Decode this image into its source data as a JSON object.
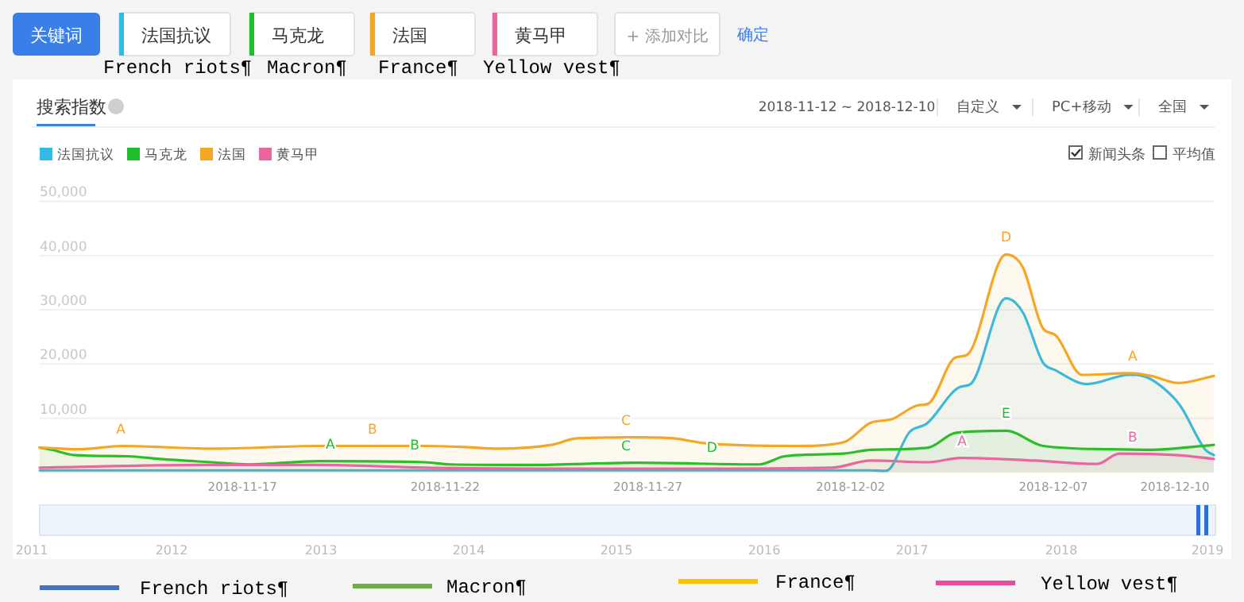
{
  "chart_data": {
    "type": "area",
    "title": "搜索指数",
    "legend": "top left",
    "grid": "y",
    "marker": "none",
    "xlim": [
      "2018-11-12T00:00",
      "2018-12-10T23:00"
    ],
    "xticks": [
      "2018-11-17",
      "2018-11-22",
      "2018-11-27",
      "2018-12-02",
      "2018-12-07",
      "2018-12-10"
    ],
    "ylim": [
      0,
      50000
    ],
    "yticks": [
      {
        "value": 10000,
        "label": "10,000"
      },
      {
        "value": 20000,
        "label": "20,000"
      },
      {
        "value": 30000,
        "label": "30,000"
      },
      {
        "value": 40000,
        "label": "40,000"
      },
      {
        "value": 50000,
        "label": "50,000"
      }
    ],
    "series": [
      {
        "name": "法国抗议",
        "color": "#33bbe8",
        "x": [
          "2018-11-12T00:00",
          "2018-11-20T00:00",
          "2018-11-28T00:00",
          "2018-12-02T12:00",
          "2018-12-02T21:00",
          "2018-12-03T11:00",
          "2018-12-03T21:00",
          "2018-12-04T17:00",
          "2018-12-04T23:00",
          "2018-12-05T20:00",
          "2018-12-06T06:00",
          "2018-12-06T18:00",
          "2018-12-07T01:00",
          "2018-12-07T20:00",
          "2018-12-08T21:00",
          "2018-12-09T05:00",
          "2018-12-09T23:00",
          "2018-12-10T04:00",
          "2018-12-10T18:00",
          "2018-12-10T23:00"
        ],
        "values": [
          400,
          400,
          400,
          400,
          300,
          7500,
          9000,
          15800,
          16300,
          32100,
          29500,
          20200,
          18900,
          16300,
          18000,
          17800,
          13900,
          11900,
          4200,
          3200
        ]
      },
      {
        "name": "马克龙",
        "color": "#1fbf2a",
        "x": [
          "2018-11-12T00:00",
          "2018-11-12T07:00",
          "2018-11-12T21:00",
          "2018-11-14T04:00",
          "2018-11-14T23:00",
          "2018-11-16T06:00",
          "2018-11-17T04:00",
          "2018-11-18T21:00",
          "2018-11-21T12:00",
          "2018-11-22T03:00",
          "2018-11-24T02:00",
          "2018-11-26T17:00",
          "2018-11-29T18:00",
          "2018-11-30T09:00",
          "2018-12-01T20:00",
          "2018-12-02T12:00",
          "2018-12-03T22:00",
          "2018-12-04T14:00",
          "2018-12-05T20:00",
          "2018-12-06T18:00",
          "2018-12-08T09:00",
          "2018-12-09T10:00",
          "2018-12-10T23:00"
        ],
        "values": [
          4600,
          4200,
          3200,
          3000,
          2500,
          1900,
          1500,
          2100,
          1900,
          1500,
          1400,
          1800,
          1500,
          3000,
          3500,
          4200,
          4600,
          7300,
          7700,
          4900,
          4300,
          4200,
          5100
        ]
      },
      {
        "name": "法国",
        "color": "#f5a623",
        "x": [
          "2018-11-12T00:00",
          "2018-11-12T23:00",
          "2018-11-14T01:00",
          "2018-11-16T06:00",
          "2018-11-18T21:00",
          "2018-11-21T12:00",
          "2018-11-22T12:00",
          "2018-11-23T07:00",
          "2018-11-24T15:00",
          "2018-11-25T06:00",
          "2018-11-26T17:00",
          "2018-11-27T15:00",
          "2018-11-28T10:00",
          "2018-11-30T16:00",
          "2018-12-01T20:00",
          "2018-12-02T12:00",
          "2018-12-03T00:00",
          "2018-12-03T16:00",
          "2018-12-03T22:00",
          "2018-12-04T14:00",
          "2018-12-04T21:00",
          "2018-12-05T20:00",
          "2018-12-06T06:00",
          "2018-12-06T18:00",
          "2018-12-07T01:00",
          "2018-12-07T17:00",
          "2018-12-08T21:00",
          "2018-12-09T10:00",
          "2018-12-10T02:00",
          "2018-12-10T23:00"
        ],
        "values": [
          4600,
          4300,
          4900,
          4400,
          4900,
          4900,
          4700,
          4400,
          5100,
          6300,
          6500,
          6300,
          5400,
          4900,
          5600,
          9200,
          9800,
          12400,
          12700,
          21200,
          21700,
          40200,
          37800,
          26500,
          25400,
          18000,
          18300,
          17800,
          16500,
          17800
        ]
      },
      {
        "name": "黄马甲",
        "color": "#e8679e",
        "x": [
          "2018-11-12T00:00",
          "2018-11-16T06:00",
          "2018-11-18T21:00",
          "2018-11-21T12:00",
          "2018-11-26T17:00",
          "2018-12-01T13:00",
          "2018-12-02T12:00",
          "2018-12-03T22:00",
          "2018-12-04T17:00",
          "2018-12-06T13:00",
          "2018-12-08T02:00",
          "2018-12-08T15:00",
          "2018-12-10T02:00",
          "2018-12-10T23:00"
        ],
        "values": [
          900,
          1400,
          1400,
          900,
          700,
          900,
          2200,
          1900,
          2700,
          2200,
          1600,
          3500,
          3200,
          2500
        ]
      }
    ],
    "annotations": [
      "关键词",
      "+ 添加对比",
      "确定",
      "French riots¶",
      "Macron¶",
      "France¶",
      "Yellow vest¶",
      "2018-11-12 ~ 2018-12-10",
      "自定义",
      "PC+移动",
      "全国",
      "新闻头条",
      "平均值",
      "2011",
      "2012",
      "2013",
      "2014",
      "2015",
      "2016",
      "2017",
      "2018",
      "2019",
      "French riots¶",
      "Macron¶",
      "France¶",
      "Yellow vest¶",
      {
        "text": "A",
        "x": "2018-11-14T00:00",
        "y": 4900
      },
      {
        "text": "B",
        "x": "2018-11-20T05:00",
        "y": 4900
      },
      {
        "text": "C",
        "x": "2018-11-26T11:00",
        "y": 6500
      },
      {
        "text": "D",
        "x": "2018-12-05T20:00",
        "y": 40200
      },
      {
        "text": "A",
        "x": "2018-12-08T23:00",
        "y": 18300
      },
      {
        "text": "A",
        "x": "2018-11-19T04:00",
        "y": 2000
      },
      {
        "text": "B",
        "x": "2018-11-21T06:00",
        "y": 1900
      },
      {
        "text": "C",
        "x": "2018-11-26T11:00",
        "y": 1800
      },
      {
        "text": "D",
        "x": "2018-11-28T14:00",
        "y": 1500
      },
      {
        "text": "E",
        "x": "2018-12-05T20:00",
        "y": 7700
      },
      {
        "text": "A",
        "x": "2018-12-04T18:00",
        "y": 2700
      },
      {
        "text": "B",
        "x": "2018-12-08T23:00",
        "y": 3400
      }
    ]
  }
}
